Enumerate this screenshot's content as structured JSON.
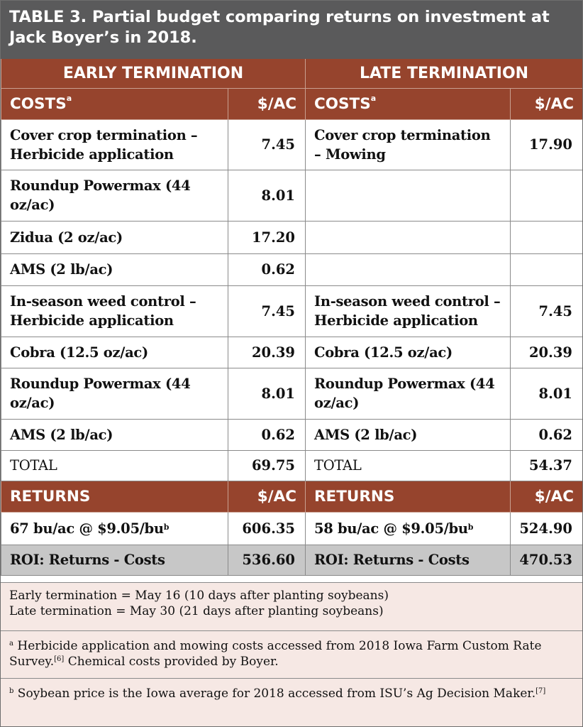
{
  "title": {
    "prefix": "TABLE 3.",
    "text": " Partial budget comparing returns on investment at Jack Boyer’s in 2018."
  },
  "headers": {
    "early": "EARLY TERMINATION",
    "late": "LATE TERMINATION"
  },
  "costs_header": {
    "label": "COSTS",
    "sup": "a",
    "unit": "$/AC"
  },
  "rows": [
    {
      "early_label": "Cover crop termination –Herbicide application",
      "early_value": "7.45",
      "late_label": "Cover crop termination – Mowing",
      "late_value": "17.90"
    },
    {
      "early_label": "Roundup Powermax (44 oz/ac)",
      "early_value": "8.01",
      "late_label": "",
      "late_value": ""
    },
    {
      "early_label": "Zidua (2 oz/ac)",
      "early_value": "17.20",
      "late_label": "",
      "late_value": ""
    },
    {
      "early_label": "AMS (2 lb/ac)",
      "early_value": "0.62",
      "late_label": "",
      "late_value": ""
    },
    {
      "early_label": "In-season weed control – Herbicide application",
      "early_value": "7.45",
      "late_label": "In-season weed control – Herbicide application",
      "late_value": "7.45"
    },
    {
      "early_label": "Cobra (12.5 oz/ac)",
      "early_value": "20.39",
      "late_label": "Cobra (12.5 oz/ac)",
      "late_value": "20.39"
    },
    {
      "early_label": "Roundup Powermax (44 oz/ac)",
      "early_value": "8.01",
      "late_label": "Roundup Powermax (44 oz/ac)",
      "late_value": "8.01"
    },
    {
      "early_label": "AMS (2 lb/ac)",
      "early_value": "0.62",
      "late_label": "AMS (2 lb/ac)",
      "late_value": "0.62"
    },
    {
      "early_label": "TOTAL",
      "early_value": "69.75",
      "late_label": "TOTAL",
      "late_value": "54.37"
    }
  ],
  "returns_header": {
    "label": "RETURNS",
    "unit": "$/AC"
  },
  "returns": {
    "early_label": "67 bu/ac @ $9.05/bu",
    "early_sup": "b",
    "early_value": "606.35",
    "late_label": "58 bu/ac @ $9.05/bu",
    "late_sup": "b",
    "late_value": "524.90"
  },
  "roi": {
    "label": "ROI: Returns - Costs",
    "early_value": "536.60",
    "late_value": "470.53"
  },
  "notes": {
    "line1": "Early termination = May 16 (10 days after planting soybeans)",
    "line2": "Late termination = May 30 (21 days after planting soybeans)",
    "a_mark": "a",
    "a_text": " Herbicide application and mowing costs accessed from 2018 Iowa Farm Custom Rate Survey.",
    "a_ref": "[6]",
    "a_text2": " Chemical costs provided by Boyer.",
    "b_mark": "b",
    "b_text": " Soybean price is the Iowa average for 2018 accessed from ISU’s Ag Decision Maker.",
    "b_ref": "[7]"
  }
}
